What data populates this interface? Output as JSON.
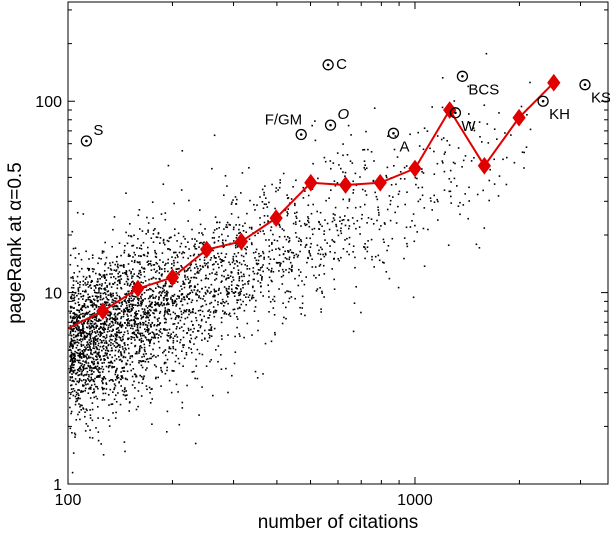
{
  "chart_data": {
    "type": "scatter",
    "title": "",
    "xlabel": "number of citations",
    "ylabel": "pageRank at α=0.5",
    "xscale": "log",
    "yscale": "log",
    "xlim": [
      100,
      3600
    ],
    "ylim": [
      1,
      330
    ],
    "grid": false,
    "legend": "none",
    "x_ticks": [
      100,
      1000
    ],
    "x_tick_labels": [
      "100",
      "1000"
    ],
    "y_ticks": [
      1,
      10,
      100
    ],
    "y_tick_labels": [
      "1",
      "10",
      "100"
    ],
    "scatter_cloud": {
      "description_count": 3500,
      "color": "#000000",
      "summary": "dense cloud of individual papers, densest near 100-200 citations and pageRank 3-15"
    },
    "series": [
      {
        "type": "line",
        "color": "#e00000",
        "marker": "diamond",
        "x": [
          100,
          126,
          159,
          200,
          251,
          316,
          398,
          501,
          631,
          794,
          1000,
          1259,
          1585,
          1995,
          2512
        ],
        "y": [
          6.5,
          8.0,
          10.5,
          12.0,
          16.8,
          18.5,
          24.5,
          37.5,
          36.5,
          37.5,
          44.5,
          90.0,
          46.0,
          82.0,
          125.0
        ],
        "marker_start": 1
      }
    ],
    "highlighted_points": [
      {
        "label": "S",
        "x": 113,
        "y": 62,
        "label_pos": "upper-right"
      },
      {
        "label": "F/GM",
        "x": 470,
        "y": 67,
        "label_pos": "upper-left"
      },
      {
        "label": "C",
        "x": 562,
        "y": 155,
        "label_pos": "right"
      },
      {
        "label": "O",
        "x": 571,
        "y": 75,
        "label_pos": "upper-right",
        "italic": true
      },
      {
        "label": "A",
        "x": 867,
        "y": 68,
        "label_pos": "lower-right"
      },
      {
        "label": "W",
        "x": 1308,
        "y": 87,
        "label_pos": "lower-right"
      },
      {
        "label": "BCS",
        "x": 1370,
        "y": 135,
        "label_pos": "lower-right"
      },
      {
        "label": "KH",
        "x": 2340,
        "y": 100,
        "label_pos": "lower-right"
      },
      {
        "label": "KS",
        "x": 3090,
        "y": 122,
        "label_pos": "lower-right"
      }
    ]
  }
}
